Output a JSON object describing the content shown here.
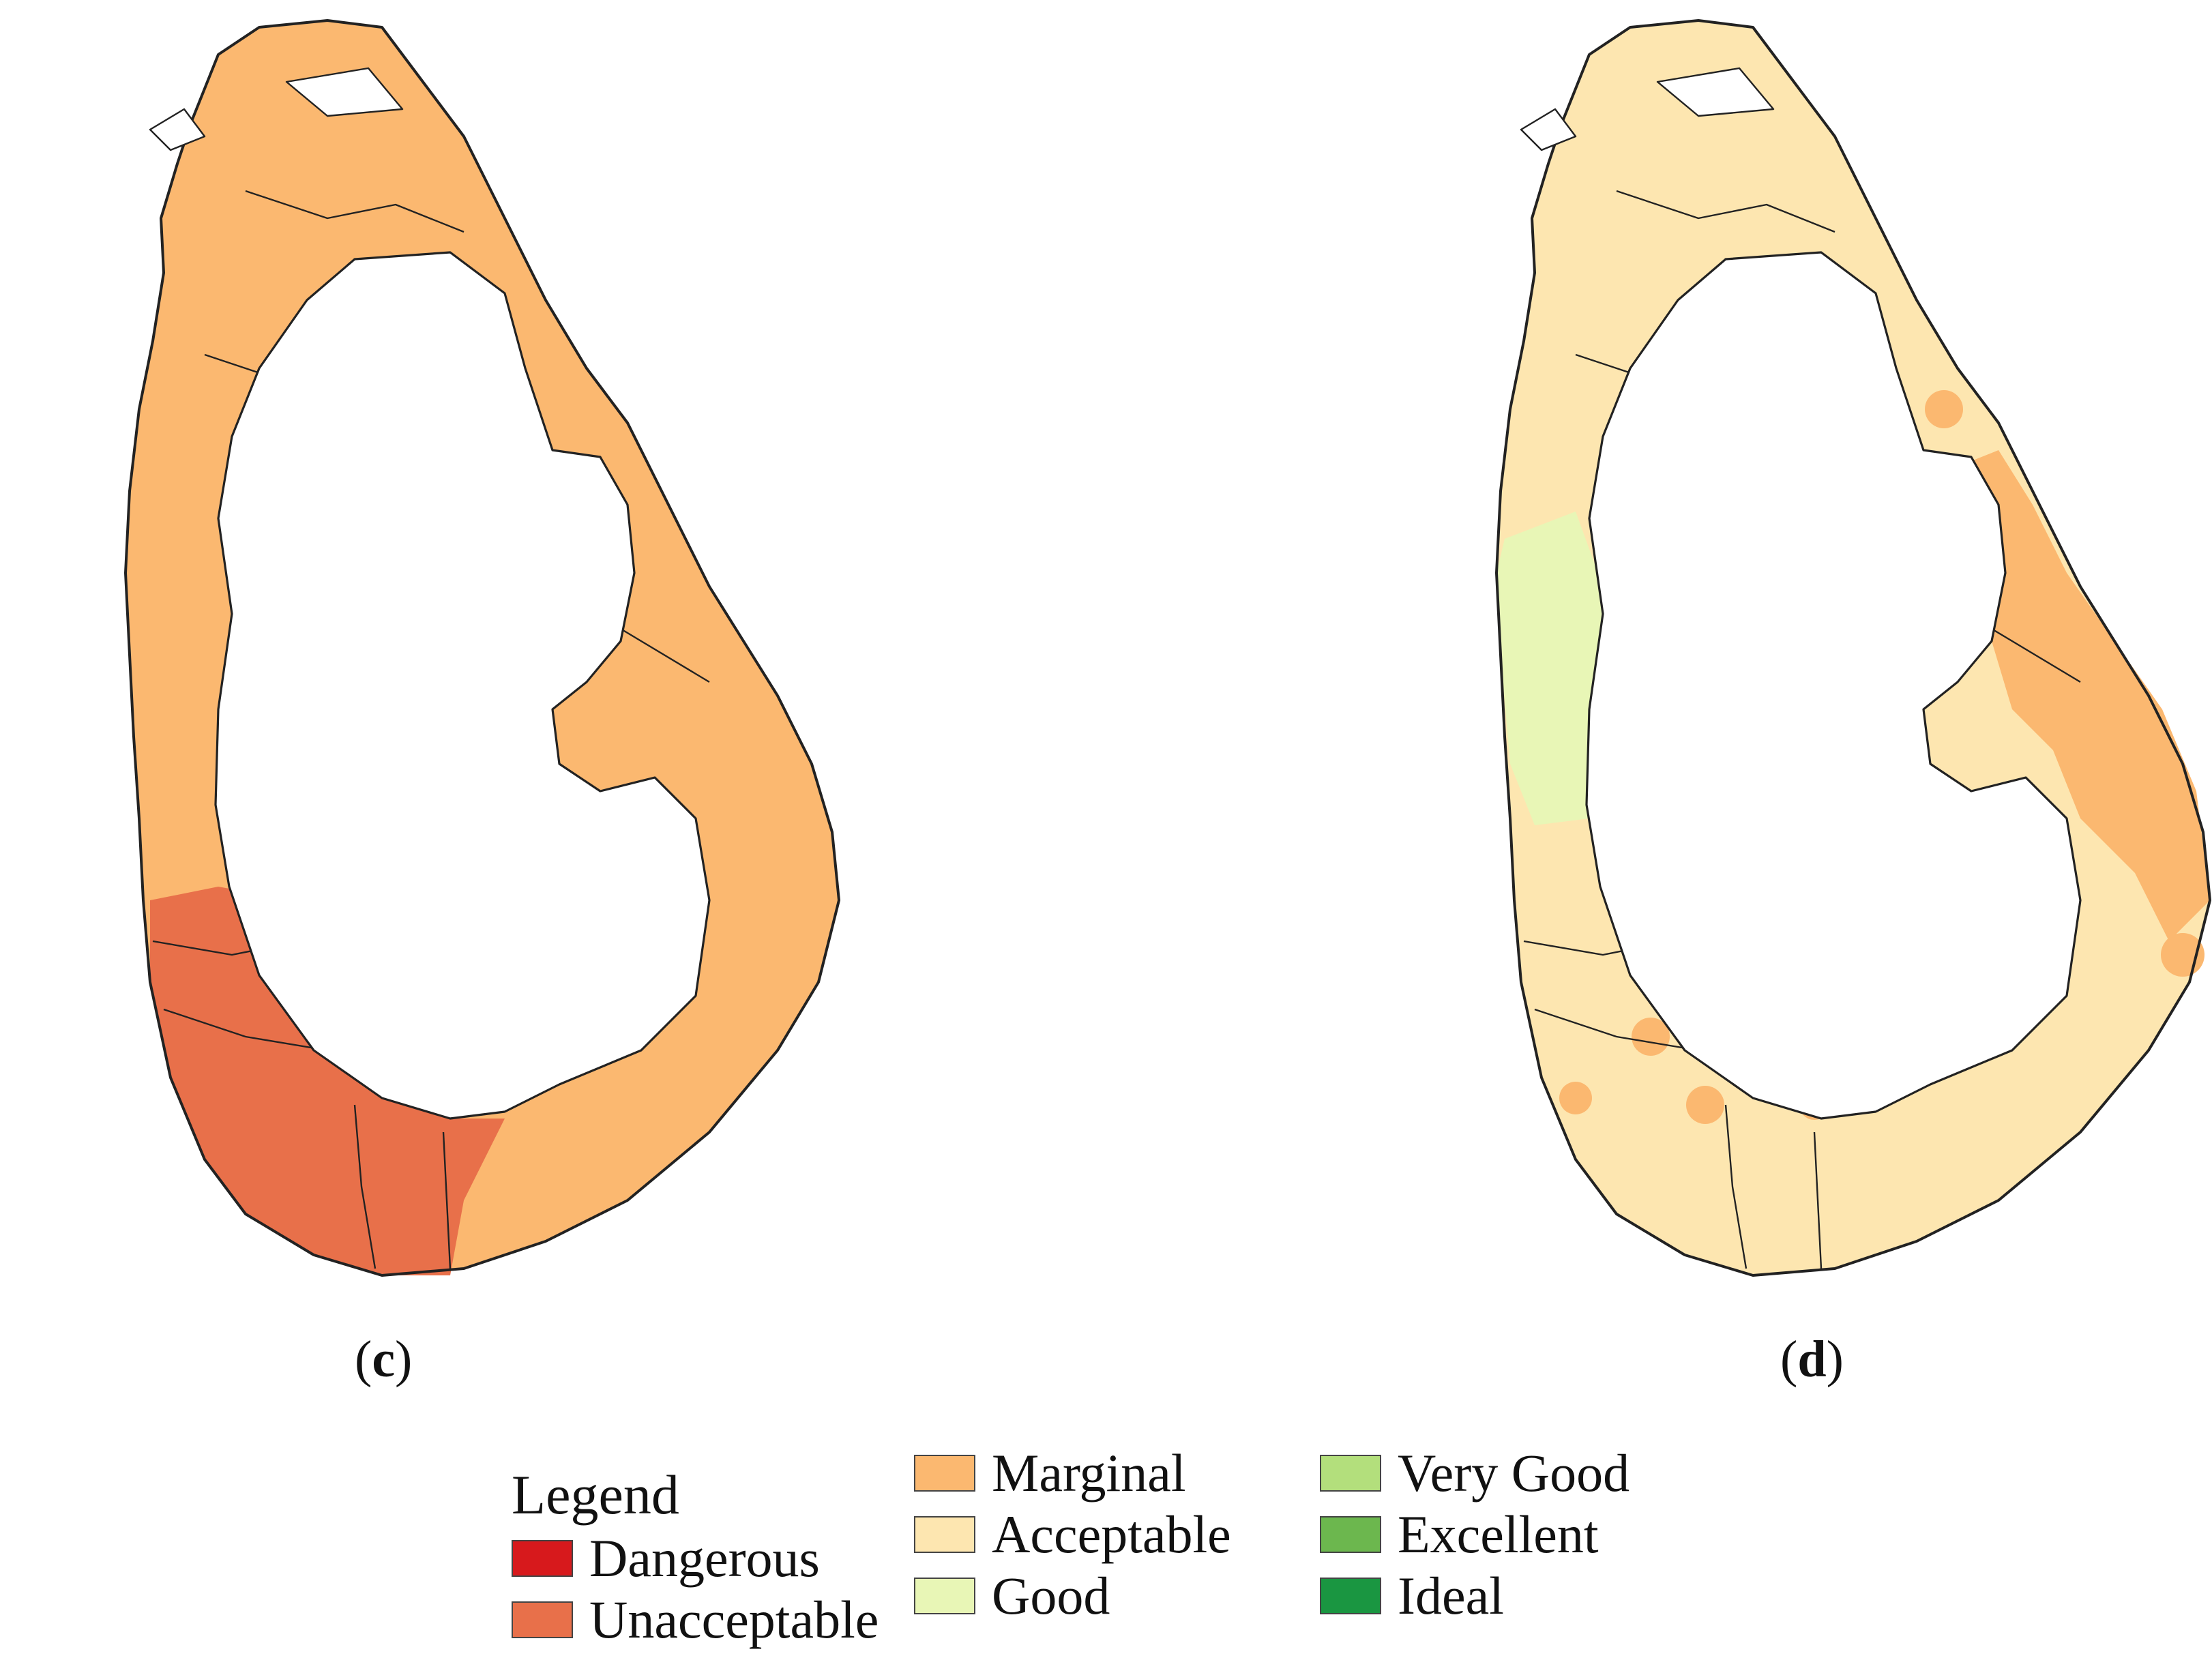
{
  "panels": [
    {
      "id": "c",
      "caption_open": "(",
      "caption_letter": "c",
      "caption_close": ")"
    },
    {
      "id": "d",
      "caption_open": "(",
      "caption_letter": "d",
      "caption_close": ")"
    }
  ],
  "legend": {
    "title": "Legend",
    "items": [
      {
        "label": "Dangerous",
        "color": "#d7191c"
      },
      {
        "label": "Unacceptable",
        "color": "#e8704a"
      },
      {
        "label": "Marginal",
        "color": "#fbb870"
      },
      {
        "label": "Acceptable",
        "color": "#fde6b0"
      },
      {
        "label": "Good",
        "color": "#e8f6b6"
      },
      {
        "label": "Very Good",
        "color": "#b3df7c"
      },
      {
        "label": "Excellent",
        "color": "#6cb74e"
      },
      {
        "label": "Ideal",
        "color": "#1a9641"
      }
    ]
  },
  "colors": {
    "panel_c_base": "#fbb870",
    "panel_c_south": "#e8704a",
    "panel_d_base": "#fde6b0",
    "panel_d_west": "#e8f6b6",
    "panel_d_east": "#fbb870",
    "outline": "#222222"
  }
}
